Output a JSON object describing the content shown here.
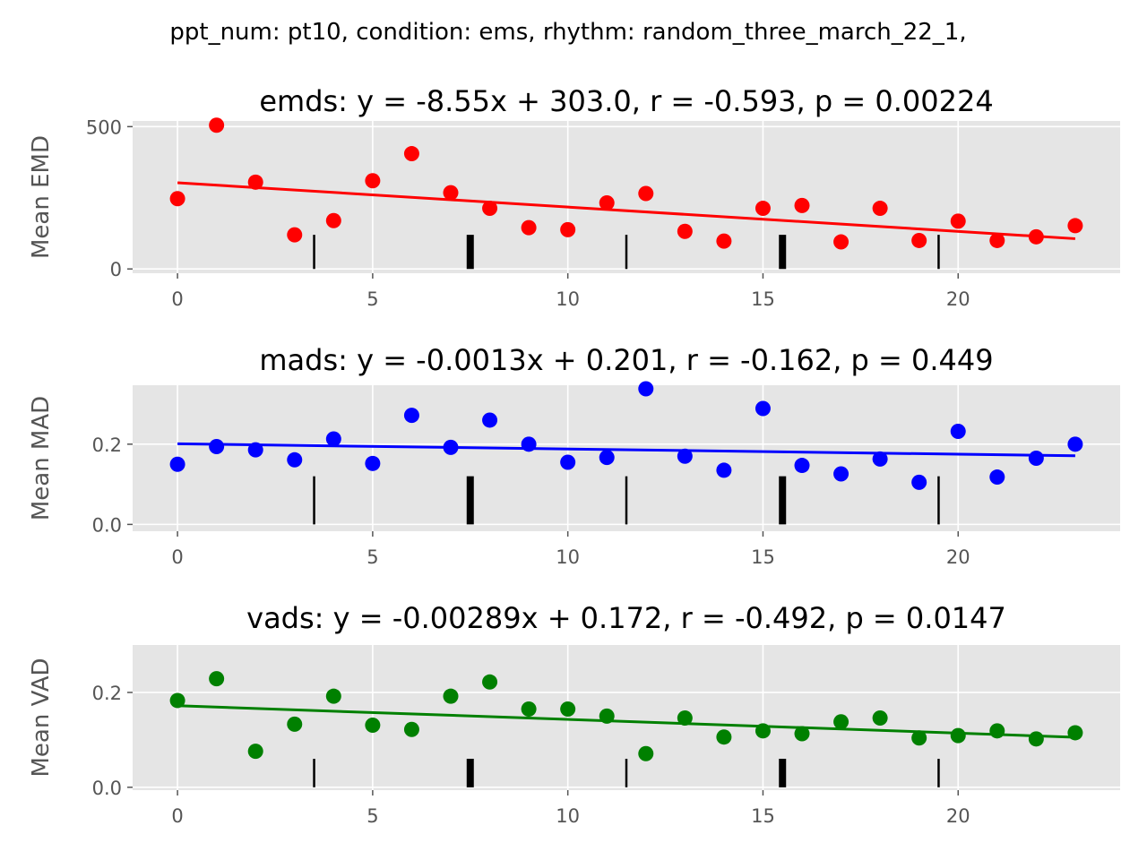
{
  "figure_title": "ppt_num: pt10, condition: ems, rhythm: random_three_march_22_1,",
  "colors": {
    "panel_bg": "#e5e5e5",
    "grid": "#ffffff",
    "tick": "#555555",
    "marker": "#000000",
    "emds": "#ff0000",
    "mads": "#0000ff",
    "vads": "#008000"
  },
  "chart_data": [
    {
      "type": "scatter",
      "name": "emds",
      "title": "emds: y = -8.55x + 303.0, r = -0.593, p = 0.00224",
      "xlabel": "",
      "ylabel": "Mean EMD",
      "xlim": [
        -1.15,
        24.15
      ],
      "ylim": [
        -15,
        520
      ],
      "xticks": [
        0,
        5,
        10,
        15,
        20
      ],
      "xtick_labels": [
        "0",
        "5",
        "10",
        "15",
        "20"
      ],
      "yticks": [
        0,
        500
      ],
      "ytick_labels": [
        "0",
        "500"
      ],
      "grid": true,
      "color": "emds",
      "x": [
        0,
        1,
        2,
        3,
        4,
        5,
        6,
        7,
        8,
        9,
        10,
        11,
        12,
        13,
        14,
        15,
        16,
        17,
        18,
        19,
        20,
        21,
        22,
        23
      ],
      "y": [
        247,
        505,
        305,
        120,
        170,
        310,
        405,
        268,
        213,
        145,
        138,
        232,
        265,
        132,
        98,
        213,
        223,
        95,
        213,
        100,
        168,
        100,
        113,
        152
      ],
      "fit": {
        "slope": -8.55,
        "intercept": 303.0
      },
      "markers": [
        {
          "x": 3.5,
          "y0": 0,
          "y1": 120,
          "weight": "thin"
        },
        {
          "x": 7.5,
          "y0": 0,
          "y1": 120,
          "weight": "thick"
        },
        {
          "x": 11.5,
          "y0": 0,
          "y1": 120,
          "weight": "thin"
        },
        {
          "x": 15.5,
          "y0": 0,
          "y1": 120,
          "weight": "thick"
        },
        {
          "x": 19.5,
          "y0": 0,
          "y1": 120,
          "weight": "thin"
        }
      ]
    },
    {
      "type": "scatter",
      "name": "mads",
      "title": "mads: y = -0.0013x + 0.201, r = -0.162, p = 0.449",
      "xlabel": "",
      "ylabel": "Mean MAD",
      "xlim": [
        -1.15,
        24.15
      ],
      "ylim": [
        -0.017,
        0.347
      ],
      "xticks": [
        0,
        5,
        10,
        15,
        20
      ],
      "xtick_labels": [
        "0",
        "5",
        "10",
        "15",
        "20"
      ],
      "yticks": [
        0.0,
        0.2
      ],
      "ytick_labels": [
        "0.0",
        "0.2"
      ],
      "grid": true,
      "color": "mads",
      "x": [
        0,
        1,
        2,
        3,
        4,
        5,
        6,
        7,
        8,
        9,
        10,
        11,
        12,
        13,
        14,
        15,
        16,
        17,
        18,
        19,
        20,
        21,
        22,
        23
      ],
      "y": [
        0.15,
        0.194,
        0.186,
        0.161,
        0.213,
        0.152,
        0.272,
        0.192,
        0.26,
        0.2,
        0.155,
        0.167,
        0.338,
        0.17,
        0.135,
        0.289,
        0.147,
        0.126,
        0.163,
        0.105,
        0.232,
        0.118,
        0.165,
        0.2
      ],
      "fit": {
        "slope": -0.0013,
        "intercept": 0.201
      },
      "markers": [
        {
          "x": 3.5,
          "y0": 0,
          "y1": 0.12,
          "weight": "thin"
        },
        {
          "x": 7.5,
          "y0": 0,
          "y1": 0.12,
          "weight": "thick"
        },
        {
          "x": 11.5,
          "y0": 0,
          "y1": 0.12,
          "weight": "thin"
        },
        {
          "x": 15.5,
          "y0": 0,
          "y1": 0.12,
          "weight": "thick"
        },
        {
          "x": 19.5,
          "y0": 0,
          "y1": 0.12,
          "weight": "thin"
        }
      ]
    },
    {
      "type": "scatter",
      "name": "vads",
      "title": "vads: y = -0.00289x + 0.172, r = -0.492, p = 0.0147",
      "xlabel": "",
      "ylabel": "Mean VAD",
      "xlim": [
        -1.15,
        24.15
      ],
      "ylim": [
        -0.006,
        0.3
      ],
      "xticks": [
        0,
        5,
        10,
        15,
        20
      ],
      "xtick_labels": [
        "0",
        "5",
        "10",
        "15",
        "20"
      ],
      "yticks": [
        0.0,
        0.2
      ],
      "ytick_labels": [
        "0.0",
        "0.2"
      ],
      "grid": true,
      "color": "vads",
      "x": [
        0,
        1,
        2,
        3,
        4,
        5,
        6,
        7,
        8,
        9,
        10,
        11,
        12,
        13,
        14,
        15,
        16,
        17,
        18,
        19,
        20,
        21,
        22,
        23
      ],
      "y": [
        0.183,
        0.229,
        0.076,
        0.133,
        0.192,
        0.131,
        0.122,
        0.192,
        0.222,
        0.165,
        0.165,
        0.15,
        0.071,
        0.146,
        0.106,
        0.119,
        0.113,
        0.138,
        0.146,
        0.104,
        0.109,
        0.119,
        0.102,
        0.115
      ],
      "fit": {
        "slope": -0.00289,
        "intercept": 0.172
      },
      "markers": [
        {
          "x": 3.5,
          "y0": 0,
          "y1": 0.06,
          "weight": "thin"
        },
        {
          "x": 7.5,
          "y0": 0,
          "y1": 0.06,
          "weight": "thick"
        },
        {
          "x": 11.5,
          "y0": 0,
          "y1": 0.06,
          "weight": "thin"
        },
        {
          "x": 15.5,
          "y0": 0,
          "y1": 0.06,
          "weight": "thick"
        },
        {
          "x": 19.5,
          "y0": 0,
          "y1": 0.06,
          "weight": "thin"
        }
      ]
    }
  ]
}
